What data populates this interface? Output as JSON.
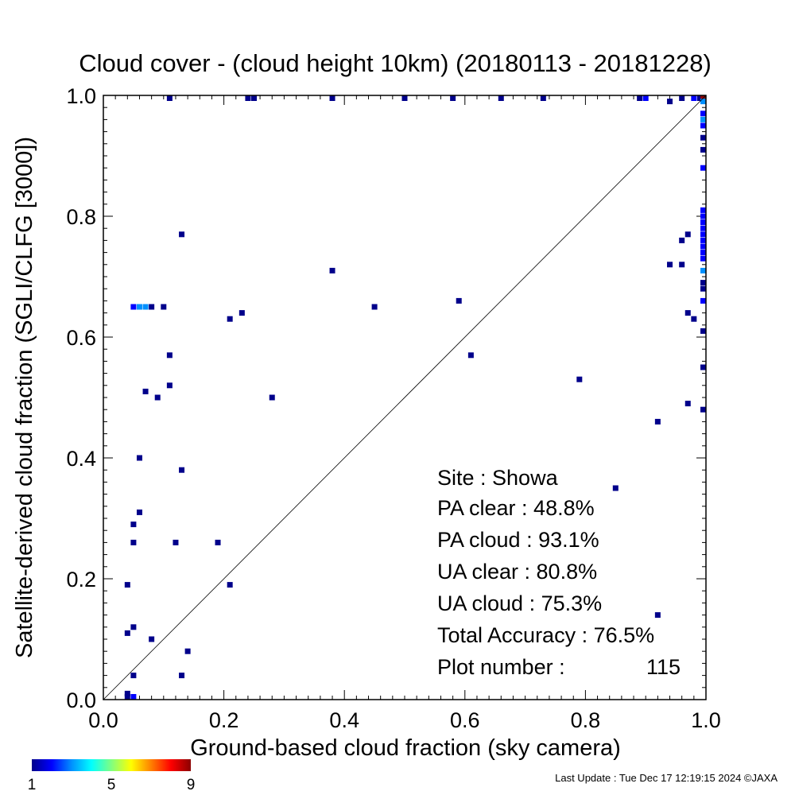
{
  "chart_data": {
    "type": "scatter",
    "title": "Cloud cover - (cloud height 10km)  (20180113 - 20181228)",
    "xlabel": "Ground-based cloud fraction (sky camera)",
    "ylabel": "Satellite-derived cloud fraction (SGLI/CLFG [3000])",
    "xlim": [
      0.0,
      1.0
    ],
    "ylim": [
      0.0,
      1.0
    ],
    "x_ticks": [
      "0.0",
      "0.2",
      "0.4",
      "0.6",
      "0.8",
      "1.0"
    ],
    "y_ticks": [
      "0.0",
      "0.2",
      "0.4",
      "0.6",
      "0.8",
      "1.0"
    ],
    "reference_line": "y = x",
    "grid": false,
    "colorbar": {
      "labels": [
        "1",
        "5",
        "9"
      ],
      "min": 1,
      "max": 9,
      "colors": [
        "#00008b",
        "#0000ff",
        "#0090ff",
        "#00ffff",
        "#80ff80",
        "#ffff00",
        "#ff8000",
        "#ff0000",
        "#8b0000"
      ]
    },
    "points": [
      {
        "x": 0.11,
        "y": 1.0,
        "c": 1
      },
      {
        "x": 0.24,
        "y": 1.0,
        "c": 1
      },
      {
        "x": 0.25,
        "y": 1.0,
        "c": 1
      },
      {
        "x": 0.38,
        "y": 1.0,
        "c": 1
      },
      {
        "x": 0.5,
        "y": 1.0,
        "c": 1
      },
      {
        "x": 0.58,
        "y": 1.0,
        "c": 1
      },
      {
        "x": 0.66,
        "y": 1.0,
        "c": 1
      },
      {
        "x": 0.73,
        "y": 1.0,
        "c": 1
      },
      {
        "x": 0.89,
        "y": 1.0,
        "c": 1
      },
      {
        "x": 0.9,
        "y": 1.0,
        "c": 2
      },
      {
        "x": 0.94,
        "y": 0.99,
        "c": 1
      },
      {
        "x": 0.96,
        "y": 1.0,
        "c": 1
      },
      {
        "x": 0.98,
        "y": 1.0,
        "c": 2
      },
      {
        "x": 0.99,
        "y": 1.0,
        "c": 1
      },
      {
        "x": 1.0,
        "y": 1.0,
        "c": 9
      },
      {
        "x": 1.0,
        "y": 0.99,
        "c": 3
      },
      {
        "x": 1.0,
        "y": 0.97,
        "c": 2
      },
      {
        "x": 1.0,
        "y": 0.96,
        "c": 3
      },
      {
        "x": 1.0,
        "y": 0.95,
        "c": 2
      },
      {
        "x": 1.0,
        "y": 0.93,
        "c": 1
      },
      {
        "x": 1.0,
        "y": 0.91,
        "c": 1
      },
      {
        "x": 1.0,
        "y": 0.88,
        "c": 2
      },
      {
        "x": 1.0,
        "y": 0.81,
        "c": 2
      },
      {
        "x": 1.0,
        "y": 0.8,
        "c": 2
      },
      {
        "x": 1.0,
        "y": 0.79,
        "c": 2
      },
      {
        "x": 1.0,
        "y": 0.78,
        "c": 2
      },
      {
        "x": 1.0,
        "y": 0.77,
        "c": 2
      },
      {
        "x": 1.0,
        "y": 0.76,
        "c": 2
      },
      {
        "x": 1.0,
        "y": 0.75,
        "c": 2
      },
      {
        "x": 1.0,
        "y": 0.74,
        "c": 2
      },
      {
        "x": 1.0,
        "y": 0.73,
        "c": 2
      },
      {
        "x": 1.0,
        "y": 0.71,
        "c": 3
      },
      {
        "x": 1.0,
        "y": 0.69,
        "c": 1
      },
      {
        "x": 1.0,
        "y": 0.68,
        "c": 1
      },
      {
        "x": 1.0,
        "y": 0.66,
        "c": 2
      },
      {
        "x": 1.0,
        "y": 0.61,
        "c": 1
      },
      {
        "x": 1.0,
        "y": 0.55,
        "c": 1
      },
      {
        "x": 1.0,
        "y": 0.48,
        "c": 1
      },
      {
        "x": 0.97,
        "y": 0.77,
        "c": 1
      },
      {
        "x": 0.96,
        "y": 0.76,
        "c": 1
      },
      {
        "x": 0.94,
        "y": 0.72,
        "c": 1
      },
      {
        "x": 0.96,
        "y": 0.72,
        "c": 1
      },
      {
        "x": 0.97,
        "y": 0.64,
        "c": 1
      },
      {
        "x": 0.98,
        "y": 0.63,
        "c": 1
      },
      {
        "x": 0.97,
        "y": 0.49,
        "c": 1
      },
      {
        "x": 0.92,
        "y": 0.46,
        "c": 1
      },
      {
        "x": 0.79,
        "y": 0.53,
        "c": 1
      },
      {
        "x": 0.85,
        "y": 0.35,
        "c": 1
      },
      {
        "x": 0.92,
        "y": 0.14,
        "c": 1
      },
      {
        "x": 0.38,
        "y": 0.71,
        "c": 1
      },
      {
        "x": 0.45,
        "y": 0.65,
        "c": 1
      },
      {
        "x": 0.59,
        "y": 0.66,
        "c": 1
      },
      {
        "x": 0.61,
        "y": 0.57,
        "c": 1
      },
      {
        "x": 0.28,
        "y": 0.5,
        "c": 1
      },
      {
        "x": 0.21,
        "y": 0.63,
        "c": 1
      },
      {
        "x": 0.23,
        "y": 0.64,
        "c": 1
      },
      {
        "x": 0.13,
        "y": 0.77,
        "c": 1
      },
      {
        "x": 0.05,
        "y": 0.65,
        "c": 2
      },
      {
        "x": 0.06,
        "y": 0.65,
        "c": 3
      },
      {
        "x": 0.07,
        "y": 0.65,
        "c": 3
      },
      {
        "x": 0.08,
        "y": 0.65,
        "c": 1
      },
      {
        "x": 0.1,
        "y": 0.65,
        "c": 1
      },
      {
        "x": 0.11,
        "y": 0.57,
        "c": 1
      },
      {
        "x": 0.07,
        "y": 0.51,
        "c": 1
      },
      {
        "x": 0.09,
        "y": 0.5,
        "c": 1
      },
      {
        "x": 0.11,
        "y": 0.52,
        "c": 1
      },
      {
        "x": 0.06,
        "y": 0.4,
        "c": 1
      },
      {
        "x": 0.13,
        "y": 0.38,
        "c": 1
      },
      {
        "x": 0.06,
        "y": 0.31,
        "c": 1
      },
      {
        "x": 0.05,
        "y": 0.29,
        "c": 1
      },
      {
        "x": 0.05,
        "y": 0.26,
        "c": 1
      },
      {
        "x": 0.12,
        "y": 0.26,
        "c": 1
      },
      {
        "x": 0.19,
        "y": 0.26,
        "c": 1
      },
      {
        "x": 0.21,
        "y": 0.19,
        "c": 1
      },
      {
        "x": 0.04,
        "y": 0.19,
        "c": 1
      },
      {
        "x": 0.05,
        "y": 0.12,
        "c": 1
      },
      {
        "x": 0.04,
        "y": 0.11,
        "c": 1
      },
      {
        "x": 0.08,
        "y": 0.1,
        "c": 1
      },
      {
        "x": 0.14,
        "y": 0.08,
        "c": 1
      },
      {
        "x": 0.05,
        "y": 0.04,
        "c": 1
      },
      {
        "x": 0.13,
        "y": 0.04,
        "c": 1
      },
      {
        "x": 0.04,
        "y": 0.01,
        "c": 1
      },
      {
        "x": 0.05,
        "y": 0.0,
        "c": 2
      },
      {
        "x": 0.04,
        "y": 0.0,
        "c": 1
      }
    ]
  },
  "stats": {
    "site": "Site : Showa",
    "pa_clear": "PA clear :  48.8%",
    "pa_cloud": "PA cloud :  93.1%",
    "ua_clear": "UA clear :  80.8%",
    "ua_cloud": "UA cloud :  75.3%",
    "total_accuracy": "Total Accuracy :  76.5%",
    "plot_number_label": "Plot number :",
    "plot_number_value": "115"
  },
  "footer": {
    "last_update": "Last Update : Tue Dec 17 12:19:15 2024  ©JAXA"
  }
}
